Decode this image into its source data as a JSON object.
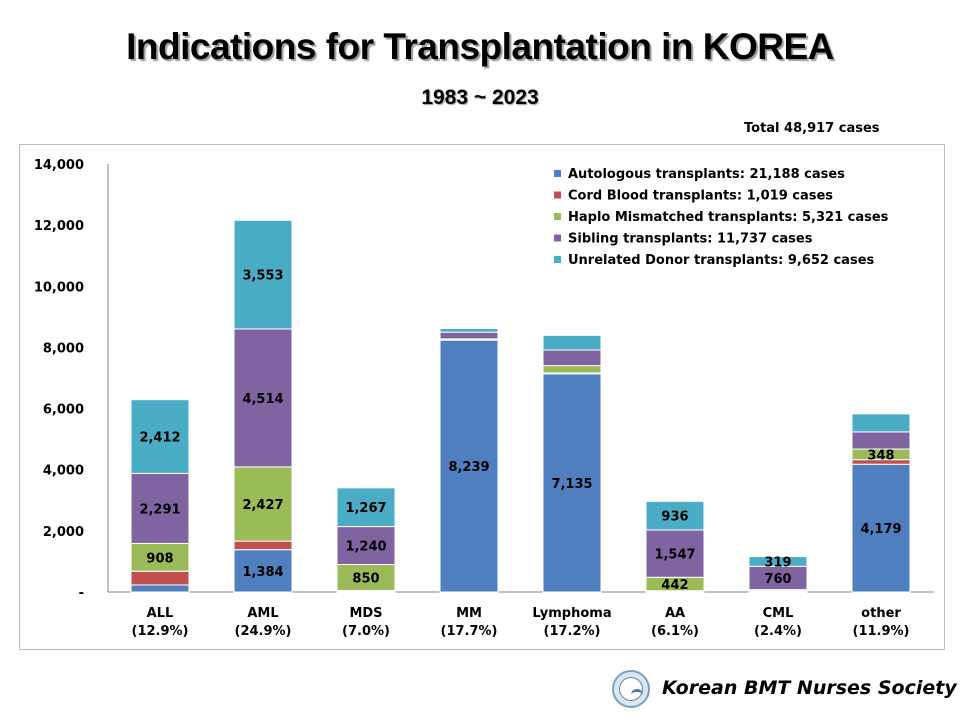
{
  "title": "Indications for Transplantation in KOREA",
  "subtitle": "1983 ~ 2023",
  "total_label": "Total 48,917 cases",
  "footer": {
    "organization": "Korean BMT Nurses Society",
    "logo_icon": "kbmtns-logo-icon"
  },
  "colors": {
    "autologous": "#4f7fbf",
    "cord_blood": "#c0504d",
    "haplo": "#9bbb59",
    "sibling": "#8064a2",
    "unrelated": "#4bacc6"
  },
  "chart_data": {
    "type": "bar",
    "stacked": true,
    "categories": [
      "ALL",
      "AML",
      "MDS",
      "MM",
      "Lymphoma",
      "AA",
      "CML",
      "other"
    ],
    "category_sublabels": [
      "(12.9%)",
      "(24.9%)",
      "(7.0%)",
      "(17.7%)",
      "(17.2%)",
      "(6.1%)",
      "(2.4%)",
      "(11.9%)"
    ],
    "yticks": [
      "-",
      "2,000",
      "4,000",
      "6,000",
      "8,000",
      "10,000",
      "12,000",
      "14,000"
    ],
    "ylim": [
      0,
      14000
    ],
    "legend_position": "top-right",
    "grid": false,
    "series": [
      {
        "name": "Autologous transplants: 21,188 cases",
        "key": "autologous",
        "values": [
          230,
          1384,
          20,
          8239,
          7135,
          10,
          20,
          4179
        ],
        "labels": [
          "",
          "1,384",
          "",
          "8,239",
          "7,135",
          "",
          "",
          "4,179"
        ]
      },
      {
        "name": "Cord Blood transplants: 1,019 cases",
        "key": "cord_blood",
        "values": [
          450,
          280,
          30,
          20,
          30,
          30,
          20,
          150
        ],
        "labels": [
          "",
          "",
          "",
          "",
          "",
          "",
          "",
          ""
        ]
      },
      {
        "name": "Haplo Mismatched transplants: 5,321 cases",
        "key": "haplo",
        "values": [
          908,
          2427,
          850,
          20,
          240,
          442,
          40,
          348
        ],
        "labels": [
          "908",
          "2,427",
          "850",
          "",
          "",
          "442",
          "",
          "348"
        ]
      },
      {
        "name": "Sibling transplants: 11,737 cases",
        "key": "sibling",
        "values": [
          2291,
          4514,
          1240,
          220,
          510,
          1547,
          760,
          560
        ],
        "labels": [
          "2,291",
          "4,514",
          "1,240",
          "",
          "",
          "1,547",
          "760",
          ""
        ]
      },
      {
        "name": "Unrelated Donor transplants: 9,652 cases",
        "key": "unrelated",
        "values": [
          2412,
          3553,
          1267,
          120,
          480,
          936,
          319,
          590
        ],
        "labels": [
          "2,412",
          "3,553",
          "1,267",
          "",
          "",
          "936",
          "319",
          ""
        ]
      }
    ]
  }
}
